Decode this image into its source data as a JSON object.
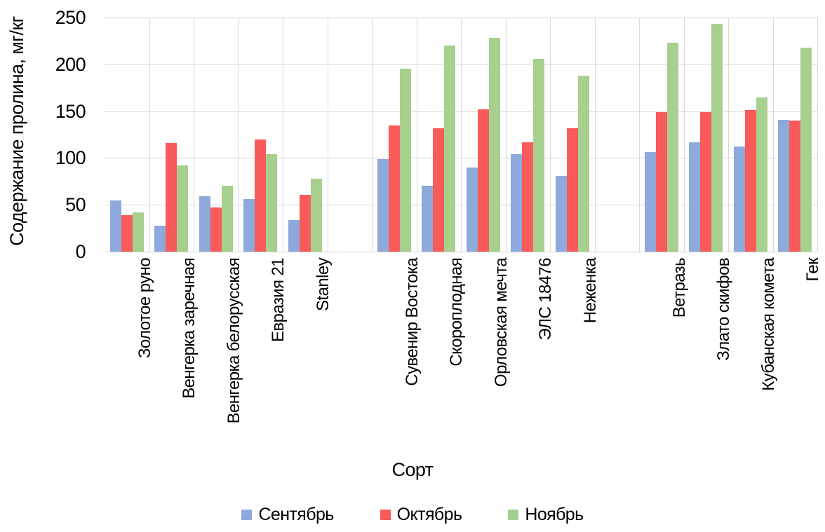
{
  "chart_data": {
    "type": "bar",
    "title": "",
    "xlabel": "Сорт",
    "ylabel": "Содержание пролина, мг/кг",
    "ylim": [
      0,
      250
    ],
    "yticks": [
      0,
      50,
      100,
      150,
      200,
      250
    ],
    "grid": "horizontal major lines every 50 plus vertical lines at category-slot boundaries, light gray",
    "legend_position": "bottom",
    "categories": [
      "Золотое руно",
      "Венгерка заречная",
      "Венгерка белорусская",
      "Евразия 21",
      "Stanley",
      "Сувенир Востока",
      "Скороплодная",
      "Орловская мечта",
      "ЭЛС 18476",
      "Неженка",
      "Ветразь",
      "Злато скифов",
      "Кубанская комета",
      "Гек"
    ],
    "spacer_after_category_indices": [
      4,
      9
    ],
    "series": [
      {
        "name": "Сентябрь",
        "color": "#8EA9DB",
        "values": [
          55,
          28,
          59,
          56,
          34,
          99,
          70,
          90,
          104,
          81,
          106,
          117,
          112,
          141
        ]
      },
      {
        "name": "Октябрь",
        "color": "#F95B5B",
        "values": [
          39,
          116,
          47,
          120,
          61,
          135,
          132,
          152,
          117,
          132,
          149,
          149,
          151,
          140
        ]
      },
      {
        "name": "Ноябрь",
        "color": "#A7CF8E",
        "values": [
          42,
          92,
          70,
          104,
          78,
          195,
          220,
          228,
          206,
          188,
          223,
          243,
          165,
          218
        ]
      }
    ]
  },
  "colors": {
    "gridline": "#D9D9D9",
    "text": "#000000",
    "background": "#FFFFFF"
  }
}
